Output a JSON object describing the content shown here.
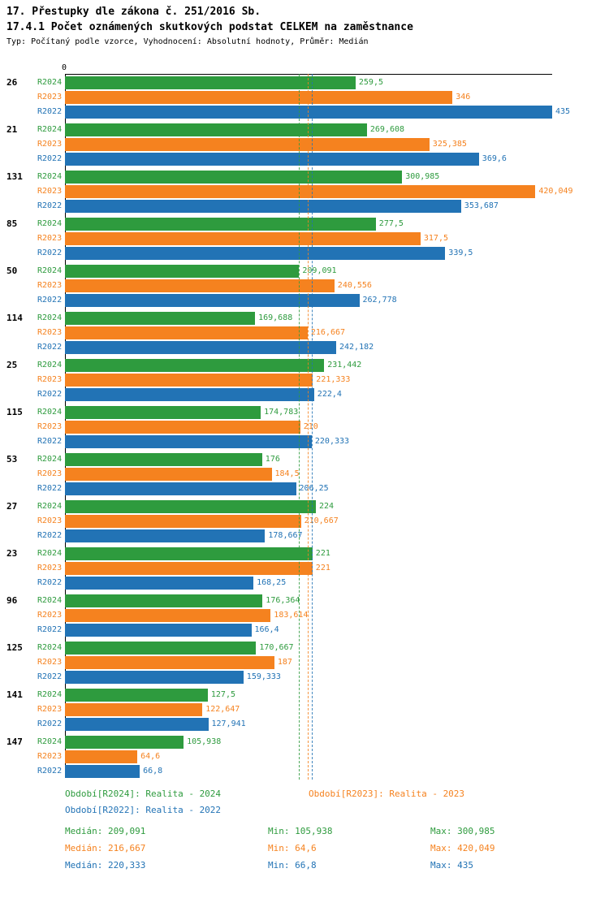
{
  "header": {
    "title": "17. Přestupky dle zákona č. 251/2016 Sb.",
    "subtitle": "17.4.1 Počet oznámených skutkových podstat CELKEM na zaměstnance",
    "meta": "Typ: Počítaný podle vzorce, Vyhodnocení: Absolutní hodnoty, Průměr: Medián"
  },
  "colors": {
    "R2024": "#2e9b3e",
    "R2023": "#f5821f",
    "R2022": "#2273b5"
  },
  "axis": {
    "origin_label": "0"
  },
  "chart_data": {
    "type": "bar",
    "orientation": "horizontal",
    "xlim": [
      0,
      435
    ],
    "title": "17.4.1 Počet oznámených skutkových podstat CELKEM na zaměstnance",
    "categories": [
      "26",
      "21",
      "131",
      "85",
      "50",
      "114",
      "25",
      "115",
      "53",
      "27",
      "23",
      "96",
      "125",
      "141",
      "147"
    ],
    "series": [
      {
        "name": "R2024",
        "color": "#2e9b3e",
        "median": 209.091,
        "values": [
          259.5,
          269.608,
          300.985,
          277.5,
          209.091,
          169.688,
          231.442,
          174.783,
          176,
          224,
          221,
          176.364,
          170.667,
          127.5,
          105.938
        ],
        "labels": [
          "259,5",
          "269,608",
          "300,985",
          "277,5",
          "209,091",
          "169,688",
          "231,442",
          "174,783",
          "176",
          "224",
          "221",
          "176,364",
          "170,667",
          "127,5",
          "105,938"
        ]
      },
      {
        "name": "R2023",
        "color": "#f5821f",
        "median": 216.667,
        "values": [
          346,
          325.385,
          420.049,
          317.5,
          240.556,
          216.667,
          221.333,
          210,
          184.5,
          210.667,
          221,
          183.614,
          187,
          122.647,
          64.6
        ],
        "labels": [
          "346",
          "325,385",
          "420,049",
          "317,5",
          "240,556",
          "216,667",
          "221,333",
          "210",
          "184,5",
          "210,667",
          "221",
          "183,614",
          "187",
          "122,647",
          "64,6"
        ]
      },
      {
        "name": "R2022",
        "color": "#2273b5",
        "median": 220.333,
        "values": [
          435,
          369.6,
          353.687,
          339.5,
          262.778,
          242.182,
          222.4,
          220.333,
          206.25,
          178.667,
          168.25,
          166.4,
          159.333,
          127.941,
          66.8
        ],
        "labels": [
          "435",
          "369,6",
          "353,687",
          "339,5",
          "262,778",
          "242,182",
          "222,4",
          "220,333",
          "206,25",
          "178,667",
          "168,25",
          "166,4",
          "159,333",
          "127,941",
          "66,8"
        ]
      }
    ],
    "legend_position": "bottom",
    "grid": false
  },
  "legend": {
    "items": [
      {
        "label": "Období[R2024]: Realita - 2024",
        "series": "R2024"
      },
      {
        "label": "Období[R2023]: Realita - 2023",
        "series": "R2023"
      },
      {
        "label": "Období[R2022]: Realita - 2022",
        "series": "R2022"
      }
    ]
  },
  "stats": {
    "rows": [
      {
        "series": "R2024",
        "median": "Medián: 209,091",
        "min": "Min: 105,938",
        "max": "Max: 300,985"
      },
      {
        "series": "R2023",
        "median": "Medián: 216,667",
        "min": "Min: 64,6",
        "max": "Max: 420,049"
      },
      {
        "series": "R2022",
        "median": "Medián: 220,333",
        "min": "Min: 66,8",
        "max": "Max: 435"
      }
    ]
  }
}
